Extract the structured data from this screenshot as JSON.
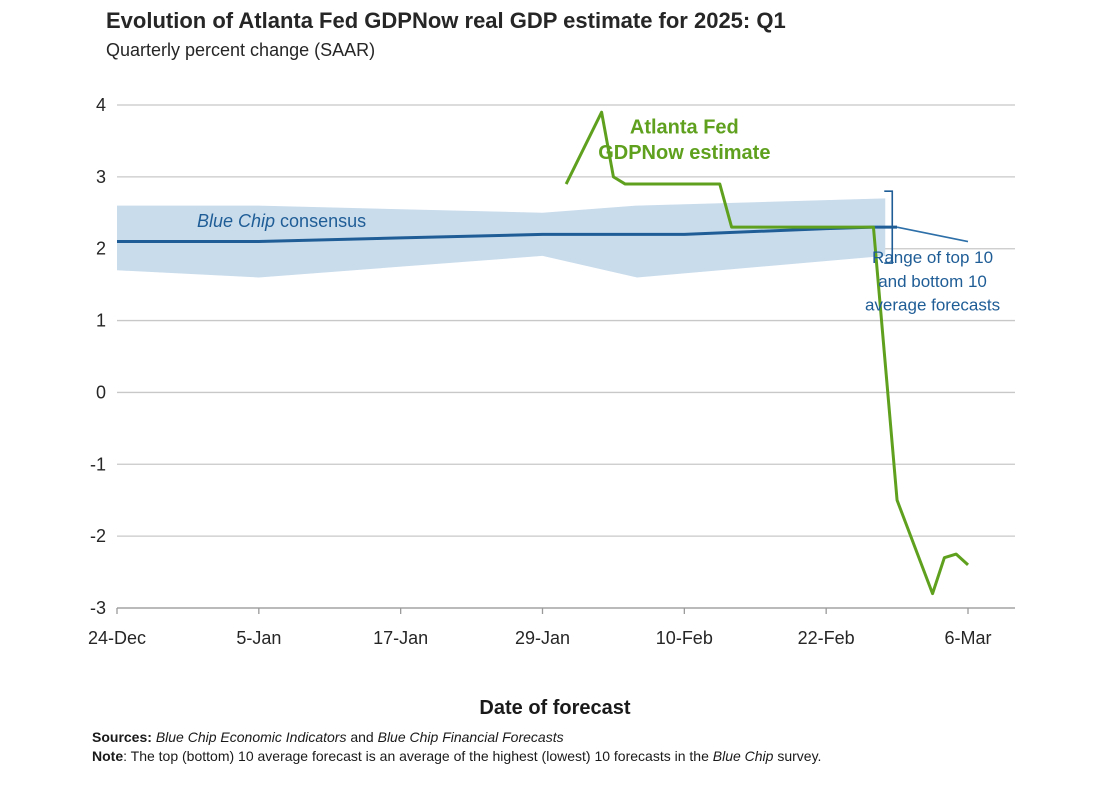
{
  "header": {
    "title": "Evolution of Atlanta Fed GDPNow real GDP estimate for 2025: Q1",
    "subtitle": "Quarterly percent change (SAAR)"
  },
  "chart_data": {
    "type": "line",
    "title": "Evolution of Atlanta Fed GDPNow real GDP estimate for 2025: Q1",
    "subtitle": "Quarterly percent change (SAAR)",
    "xlabel": "Date of forecast",
    "ylabel": "",
    "x_ticks": [
      "24-Dec",
      "5-Jan",
      "17-Jan",
      "29-Jan",
      "10-Feb",
      "22-Feb",
      "6-Mar"
    ],
    "y_ticks": [
      "4",
      "3",
      "2",
      "1",
      "0",
      "-1",
      "-2",
      "-3"
    ],
    "ylim": [
      -3,
      4
    ],
    "grid": true,
    "series": [
      {
        "name": "Atlanta Fed GDPNow estimate",
        "color": "#5fa11f",
        "points": [
          {
            "x": "2025-01-31",
            "y": 2.9
          },
          {
            "x": "2025-02-03",
            "y": 3.9
          },
          {
            "x": "2025-02-04",
            "y": 3.0
          },
          {
            "x": "2025-02-05",
            "y": 2.9
          },
          {
            "x": "2025-02-13",
            "y": 2.9
          },
          {
            "x": "2025-02-14",
            "y": 2.3
          },
          {
            "x": "2025-02-26",
            "y": 2.3
          },
          {
            "x": "2025-02-28",
            "y": -1.5
          },
          {
            "x": "2025-03-03",
            "y": -2.8
          },
          {
            "x": "2025-03-04",
            "y": -2.3
          },
          {
            "x": "2025-03-05",
            "y": -2.25
          },
          {
            "x": "2025-03-06",
            "y": -2.4
          }
        ]
      },
      {
        "name": "Blue Chip consensus",
        "color": "#1f5d96",
        "points": [
          {
            "x": "2024-12-24",
            "y": 2.1
          },
          {
            "x": "2025-01-05",
            "y": 2.1
          },
          {
            "x": "2025-01-17",
            "y": 2.15
          },
          {
            "x": "2025-01-29",
            "y": 2.2
          },
          {
            "x": "2025-02-10",
            "y": 2.2
          },
          {
            "x": "2025-02-22",
            "y": 2.28
          },
          {
            "x": "2025-02-26",
            "y": 2.3
          },
          {
            "x": "2025-02-28",
            "y": 2.3
          },
          {
            "x": "2025-03-06",
            "y": 2.1
          }
        ]
      }
    ],
    "range_band": {
      "name": "Range of top 10 and bottom 10 average forecasts",
      "color": "#c9dcec",
      "points": [
        {
          "x": "2024-12-24",
          "low": 1.7,
          "high": 2.6
        },
        {
          "x": "2025-01-05",
          "low": 1.6,
          "high": 2.6
        },
        {
          "x": "2025-01-29",
          "low": 1.9,
          "high": 2.5
        },
        {
          "x": "2025-02-06",
          "low": 1.6,
          "high": 2.6
        },
        {
          "x": "2025-02-27",
          "low": 1.9,
          "high": 2.7
        }
      ]
    },
    "annotations": [
      {
        "text": "Atlanta Fed",
        "x": "2025-02-10",
        "y": 3.6,
        "color": "#5fa11f"
      },
      {
        "text": "GDPNow estimate",
        "x": "2025-02-10",
        "y": 3.25,
        "color": "#5fa11f"
      },
      {
        "text": "Blue Chip consensus",
        "x": "2025-01-11",
        "y": 2.3,
        "color": "#1f5d96"
      },
      {
        "text": "Range of top 10",
        "x": "2025-03-03",
        "y": 1.8,
        "color": "#1f5d96"
      },
      {
        "text": "and bottom 10",
        "x": "2025-03-03",
        "y": 1.47,
        "color": "#1f5d96"
      },
      {
        "text": "average forecasts",
        "x": "2025-03-03",
        "y": 1.14,
        "color": "#1f5d96"
      }
    ]
  },
  "footer": {
    "sources_label": "Sources:",
    "sources_text_a": "Blue Chip Economic Indicators",
    "sources_and": " and ",
    "sources_text_b": "Blue Chip Financial Forecasts",
    "note_label": "Note",
    "note_text_a": ": The top (bottom) 10 average forecast is an average of the highest (lowest) 10 forecasts in the ",
    "note_text_b": "Blue Chip",
    "note_text_c": " survey."
  }
}
